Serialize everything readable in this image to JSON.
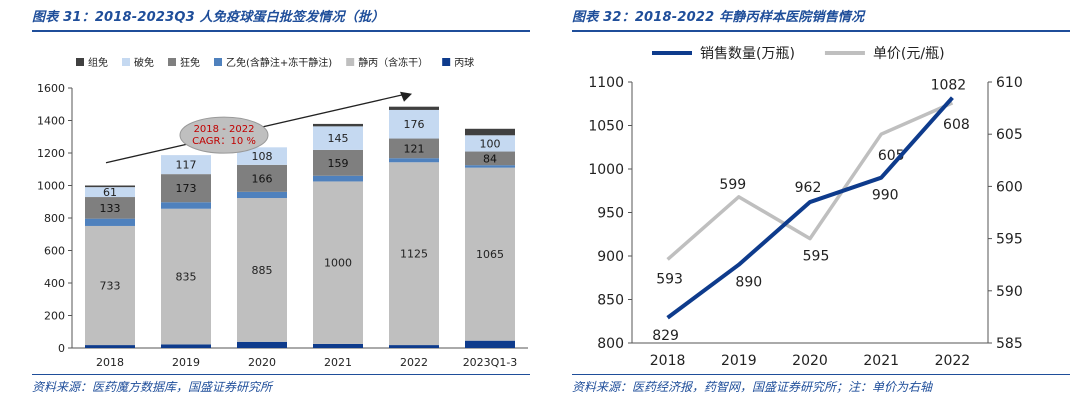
{
  "left": {
    "title": "图表 31：2018-2023Q3 人免疫球蛋白批签发情况（批）",
    "source": "资料来源：医药魔方数据库，国盛证券研究所",
    "annotation": "2018 - 2022 CAGR：10 %",
    "annotation_lines": [
      "2018 - 2022",
      "CAGR：10 %"
    ]
  },
  "right": {
    "title": "图表 32：2018-2022 年静丙样本医院销售情况",
    "source": "资料来源：医药经济报，药智网，国盛证券研究所；注：单价为右轴"
  },
  "colors": {
    "title_blue": "#1f4e9a",
    "zu_mian": "#404040",
    "po_mian": "#c5d9f1",
    "kuang_mian": "#7f7f7f",
    "yi_mian": "#4f81bd",
    "jing_bing": "#bfbfbf",
    "bing_qiu": "#0e3b8c",
    "sales_line": "#0e3b8c",
    "price_line": "#bfbfbf"
  },
  "chart_data": [
    {
      "type": "bar",
      "stacked": true,
      "categories": [
        "2018",
        "2019",
        "2020",
        "2021",
        "2022",
        "2023Q1-3"
      ],
      "ylim": [
        0,
        1600
      ],
      "yticks": [
        0,
        200,
        400,
        600,
        800,
        1000,
        1200,
        1400,
        1600
      ],
      "legend_position": "top",
      "grid": false,
      "series": [
        {
          "name": "丙球",
          "key": "bing_qiu",
          "values": [
            18,
            22,
            38,
            25,
            18,
            45
          ],
          "labels": [
            null,
            null,
            null,
            null,
            null,
            null
          ]
        },
        {
          "name": "静丙（含冻干）",
          "key": "jing_bing",
          "values": [
            733,
            835,
            885,
            1000,
            1125,
            1065
          ],
          "labels": [
            "733",
            "835",
            "885",
            "1000",
            "1125",
            "1065"
          ]
        },
        {
          "name": "乙免(含静注+冻干静注)",
          "key": "yi_mian",
          "values": [
            45,
            40,
            38,
            35,
            25,
            15
          ],
          "labels": [
            null,
            null,
            null,
            null,
            null,
            null
          ]
        },
        {
          "name": "狂免",
          "key": "kuang_mian",
          "values": [
            133,
            173,
            166,
            159,
            121,
            84
          ],
          "labels": [
            "133",
            "173",
            "166",
            "159",
            "121",
            "84"
          ]
        },
        {
          "name": "破免",
          "key": "po_mian",
          "values": [
            61,
            117,
            108,
            145,
            176,
            100
          ],
          "labels": [
            "61",
            "117",
            "108",
            "145",
            "176",
            "100"
          ]
        },
        {
          "name": "组免",
          "key": "zu_mian",
          "values": [
            10,
            0,
            0,
            15,
            20,
            40
          ],
          "labels": [
            null,
            null,
            null,
            null,
            null,
            null
          ]
        }
      ],
      "legend_order": [
        "组免",
        "破免",
        "狂免",
        "乙免(含静注+冻干静注)",
        "静丙（含冻干）",
        "丙球"
      ]
    },
    {
      "type": "line",
      "x": [
        "2018",
        "2019",
        "2020",
        "2021",
        "2022"
      ],
      "legend_position": "top",
      "grid": false,
      "y_left": {
        "lim": [
          800,
          1100
        ],
        "ticks": [
          800,
          850,
          900,
          950,
          1000,
          1050,
          1100
        ]
      },
      "y_right": {
        "lim": [
          585,
          610
        ],
        "ticks": [
          585,
          590,
          595,
          600,
          605,
          610
        ]
      },
      "series": [
        {
          "name": "销售数量(万瓶)",
          "axis": "left",
          "key": "sales_line",
          "values": [
            829,
            890,
            962,
            990,
            1082
          ],
          "labels": [
            "829",
            "890",
            "962",
            "990",
            "1082"
          ]
        },
        {
          "name": "单价(元/瓶)",
          "axis": "right",
          "key": "price_line",
          "values": [
            593,
            599,
            595,
            605,
            608
          ],
          "labels": [
            "593",
            "599",
            "595",
            "605",
            "608"
          ]
        }
      ]
    }
  ]
}
